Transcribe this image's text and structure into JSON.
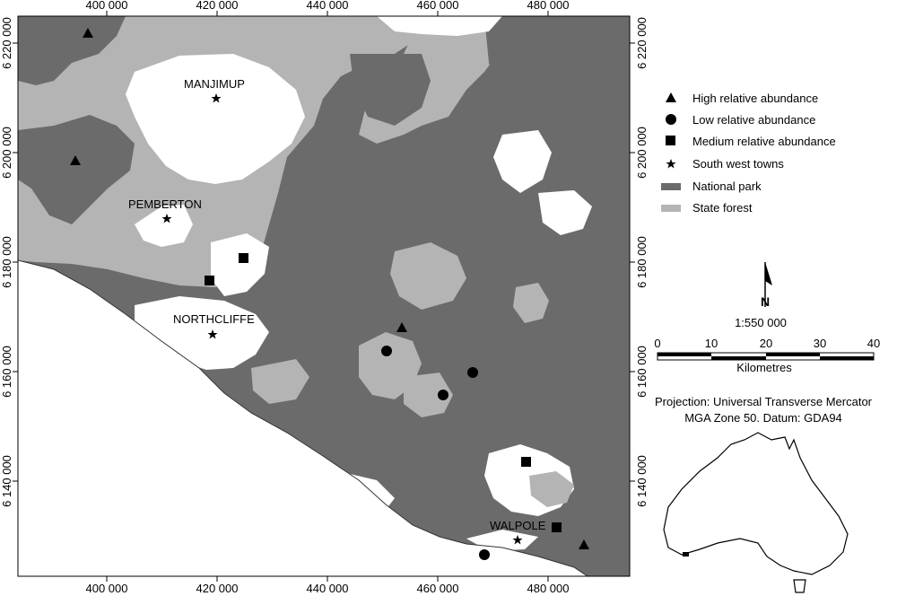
{
  "map": {
    "axis_top_labels": [
      "400 000",
      "420 000",
      "440 000",
      "460 000",
      "480 000"
    ],
    "axis_bottom_labels": [
      "400 000",
      "420 000",
      "440 000",
      "460 000",
      "480 000"
    ],
    "axis_left_labels": [
      "6 220 000",
      "6 200 000",
      "6 180 000",
      "6 160 000",
      "6 140 000"
    ],
    "axis_right_labels": [
      "6 220 000",
      "6 200 000",
      "6 180 000",
      "6 160 000",
      "6 140 000"
    ],
    "towns": [
      {
        "name": "MANJIMUP"
      },
      {
        "name": "PEMBERTON"
      },
      {
        "name": "NORTHCLIFFE"
      },
      {
        "name": "WALPOLE"
      }
    ],
    "colors": {
      "national_park": "#6b6b6b",
      "state_forest": "#b4b4b4",
      "other_land": "#ffffff",
      "marker": "#000000"
    }
  },
  "legend": {
    "items": [
      {
        "symbol": "triangle",
        "label": "High relative abundance"
      },
      {
        "symbol": "circle",
        "label": "Low relative abundance"
      },
      {
        "symbol": "square",
        "label": "Medium relative abundance"
      },
      {
        "symbol": "star",
        "label": "South west towns"
      },
      {
        "symbol": "national-park-swatch",
        "label": "National park"
      },
      {
        "symbol": "state-forest-swatch",
        "label": "State forest"
      }
    ]
  },
  "scale": {
    "ratio": "1:550 000",
    "ticks": [
      "0",
      "10",
      "20",
      "30",
      "40"
    ],
    "unit": "Kilometres"
  },
  "north_arrow": {
    "label": "N",
    "icon": "north-arrow-icon"
  },
  "projection": {
    "line1": "Projection: Universal Transverse Mercator",
    "line2": "MGA Zone 50. Datum: GDA94"
  },
  "inset": {
    "icon": "australia-outline-icon"
  }
}
